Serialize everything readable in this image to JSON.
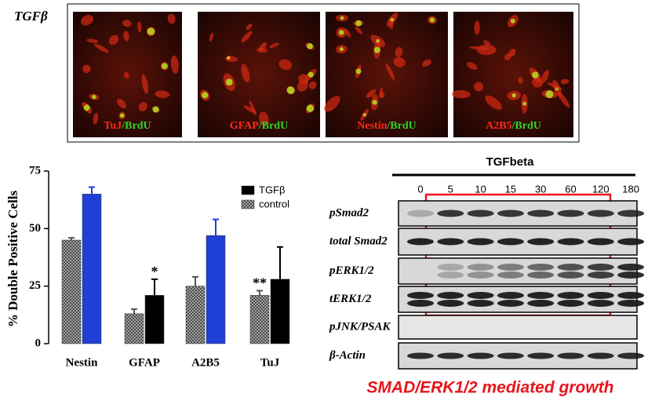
{
  "figure_label": "TGFβ",
  "images": [
    {
      "marker": "TuJ",
      "stain": "/BrdU"
    },
    {
      "marker": "GFAP",
      "stain": "/BrdU"
    },
    {
      "marker": "Nestin",
      "stain": "/BrdU"
    },
    {
      "marker": "A2B5",
      "stain": "/BrdU"
    }
  ],
  "chart_data": {
    "type": "bar",
    "ylabel": "% Double Positive Cells",
    "categories": [
      "Nestin",
      "GFAP",
      "A2B5",
      "TuJ"
    ],
    "series": [
      {
        "name": "TGFβ",
        "color": "#000000",
        "bar_colors": [
          "#1f3fd6",
          "#000000",
          "#1f3fd6",
          "#000000"
        ],
        "values": [
          65,
          21,
          47,
          28
        ],
        "errors": [
          3,
          7,
          7,
          14
        ]
      },
      {
        "name": "control",
        "color": "#8a8a8a",
        "pattern": "hatch",
        "values": [
          45,
          13,
          25,
          21
        ],
        "errors": [
          1,
          2,
          4,
          2
        ]
      }
    ],
    "annotations": [
      {
        "text": "*",
        "category": "GFAP",
        "series": "TGFβ"
      },
      {
        "text": "**",
        "category": "TuJ",
        "series": "control"
      }
    ],
    "ylim": [
      0,
      75
    ],
    "yticks": [
      0,
      25,
      50,
      75
    ]
  },
  "blot": {
    "title": "TGFbeta",
    "timepoints": [
      0,
      5,
      10,
      15,
      30,
      60,
      120,
      180
    ],
    "rows": [
      "pSmad2",
      "total Smad2",
      "pERK1/2",
      "tERK1/2",
      "pJNK/PSAK",
      "β-Actin"
    ]
  },
  "caption": "SMAD/ERK1/2 mediated growth"
}
